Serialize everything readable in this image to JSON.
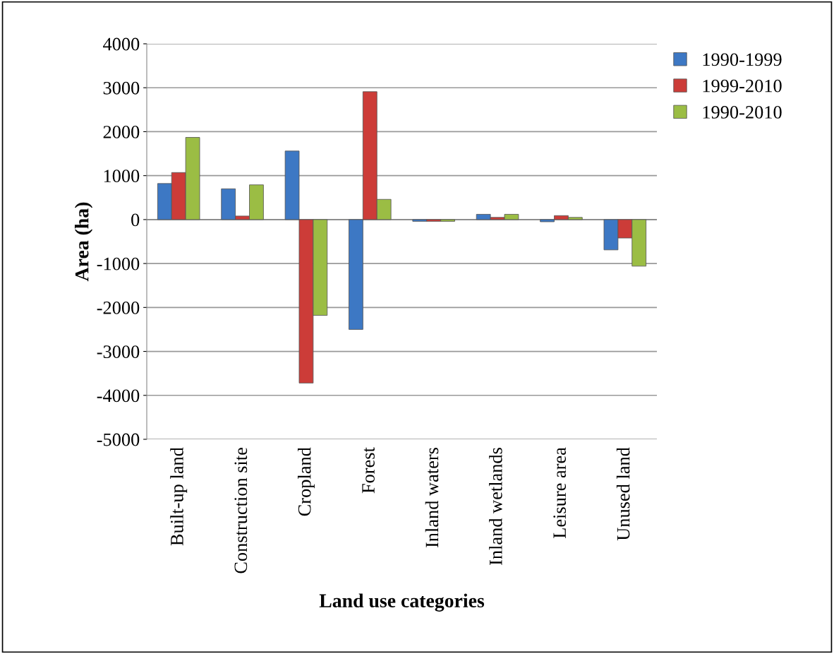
{
  "chart_data": {
    "type": "bar",
    "xlabel": "Land use categories",
    "ylabel": "Area (ha)",
    "categories": [
      "Built-up land",
      "Construction site",
      "Cropland",
      "Forest",
      "Inland waters",
      "Inland wetlands",
      "Leisure area",
      "Unused land"
    ],
    "series": [
      {
        "name": "1990-1999",
        "color": "#3d78c4",
        "values": [
          820,
          700,
          1560,
          -2500,
          -40,
          120,
          -50,
          -690
        ]
      },
      {
        "name": "1999-2010",
        "color": "#cc3c38",
        "values": [
          1070,
          80,
          -3720,
          2910,
          -40,
          50,
          90,
          -420
        ]
      },
      {
        "name": "1990-2010",
        "color": "#9bbd44",
        "values": [
          1870,
          790,
          -2180,
          460,
          -40,
          120,
          50,
          -1060
        ]
      }
    ],
    "ylim": [
      -5000,
      4000
    ],
    "yticks": [
      -5000,
      -4000,
      -3000,
      -2000,
      -1000,
      0,
      1000,
      2000,
      3000,
      4000
    ],
    "grid": "y",
    "legend": "top right"
  }
}
